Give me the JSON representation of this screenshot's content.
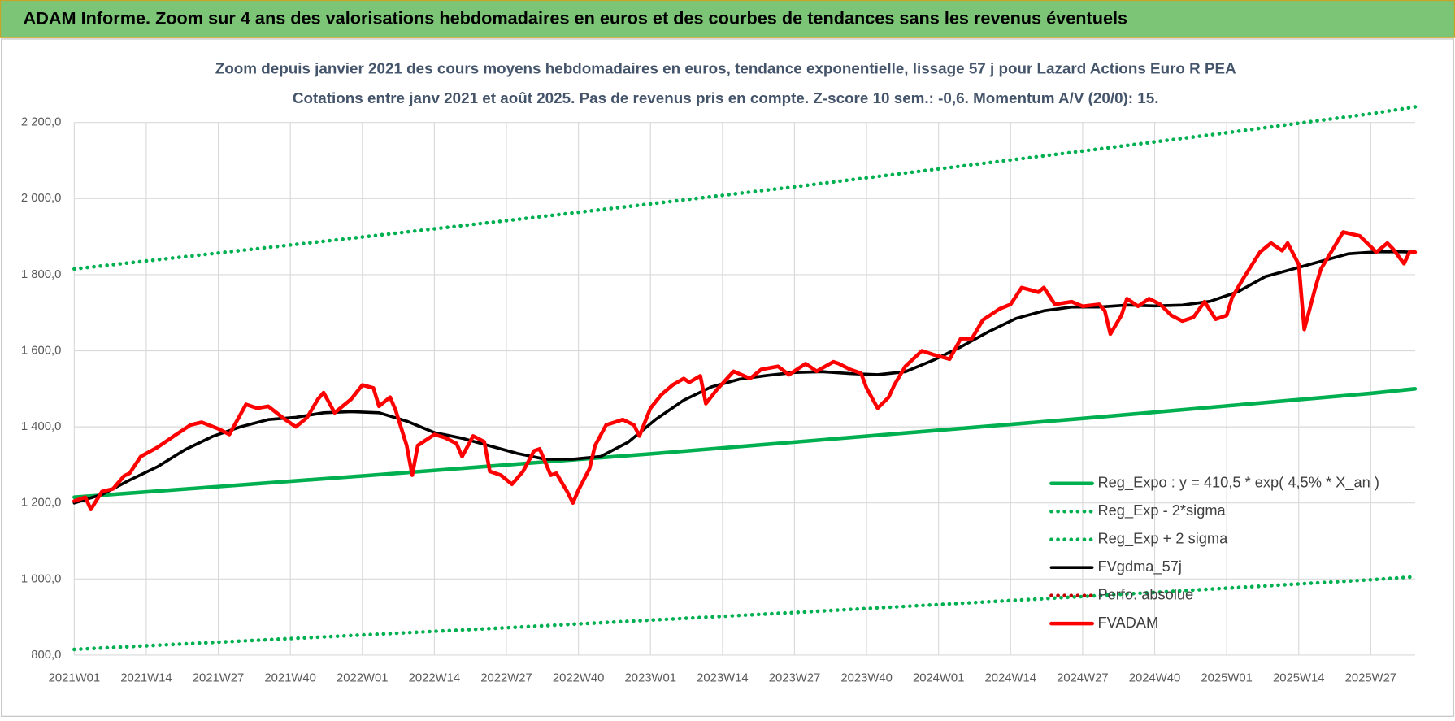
{
  "header": "ADAM Informe. Zoom sur 4 ans des valorisations hebdomadaires en euros et des courbes de tendances sans les revenus éventuels",
  "chart_data": {
    "type": "line",
    "title": "Zoom depuis janvier 2021 des cours moyens hebdomadaires en euros, tendance exponentielle, lissage 57 j pour Lazard Actions Euro R PEA",
    "subtitle": "Cotations entre janv 2021 et août 2025. Pas de revenus pris en compte. Z-score 10 sem.: -0,6. Momentum A/V (20/0): 15.",
    "xlim": [
      0,
      242
    ],
    "xticks": [
      {
        "value": 0,
        "label": "2021W01"
      },
      {
        "value": 13,
        "label": "2021W14"
      },
      {
        "value": 26,
        "label": "2021W27"
      },
      {
        "value": 39,
        "label": "2021W40"
      },
      {
        "value": 52,
        "label": "2022W01"
      },
      {
        "value": 65,
        "label": "2022W14"
      },
      {
        "value": 78,
        "label": "2022W27"
      },
      {
        "value": 91,
        "label": "2022W40"
      },
      {
        "value": 104,
        "label": "2023W01"
      },
      {
        "value": 117,
        "label": "2023W14"
      },
      {
        "value": 130,
        "label": "2023W27"
      },
      {
        "value": 143,
        "label": "2023W40"
      },
      {
        "value": 156,
        "label": "2024W01"
      },
      {
        "value": 169,
        "label": "2024W14"
      },
      {
        "value": 182,
        "label": "2024W27"
      },
      {
        "value": 195,
        "label": "2024W40"
      },
      {
        "value": 208,
        "label": "2025W01"
      },
      {
        "value": 221,
        "label": "2025W14"
      },
      {
        "value": 234,
        "label": "2025W27"
      }
    ],
    "ylim": [
      800,
      2300
    ],
    "yticks": [
      {
        "value": 800,
        "label": "800,0"
      },
      {
        "value": 1000,
        "label": "1 000,0"
      },
      {
        "value": 1200,
        "label": "1 200,0"
      },
      {
        "value": 1400,
        "label": "1 400,0"
      },
      {
        "value": 1600,
        "label": "1 600,0"
      },
      {
        "value": 1800,
        "label": "1 800,0"
      },
      {
        "value": 2000,
        "label": "2 000,0"
      },
      {
        "value": 2200,
        "label": "2 200,0"
      }
    ],
    "grid": true,
    "legend": "lower-right",
    "series": [
      {
        "name": "Reg_Expo : y = 410,5 * exp( 4,5% *  X_an )",
        "color": "#00b050",
        "style": "solid",
        "x": [
          0,
          26,
          52,
          78,
          104,
          130,
          156,
          182,
          208,
          234,
          242
        ],
        "values": [
          1215,
          1243,
          1271,
          1300,
          1329,
          1360,
          1391,
          1422,
          1455,
          1488,
          1500
        ]
      },
      {
        "name": "Reg_Exp - 2*sigma",
        "color": "#00b050",
        "style": "dotted",
        "x": [
          0,
          26,
          52,
          78,
          104,
          130,
          156,
          182,
          208,
          234,
          242
        ],
        "values": [
          815,
          834,
          853,
          872,
          892,
          912,
          933,
          954,
          976,
          998,
          1006
        ]
      },
      {
        "name": "Reg_Exp + 2 sigma",
        "color": "#00b050",
        "style": "dotted",
        "x": [
          0,
          26,
          52,
          78,
          104,
          130,
          156,
          182,
          208,
          234,
          242
        ],
        "values": [
          1815,
          1857,
          1899,
          1942,
          1986,
          2031,
          2078,
          2125,
          2173,
          2223,
          2241
        ]
      },
      {
        "name": "FVgdma_57j",
        "color": "#000000",
        "style": "solid",
        "x": [
          0,
          5,
          10,
          15,
          20,
          25,
          30,
          35,
          40,
          45,
          50,
          55,
          60,
          65,
          70,
          75,
          80,
          85,
          90,
          95,
          100,
          105,
          110,
          115,
          120,
          125,
          130,
          135,
          140,
          145,
          150,
          155,
          160,
          165,
          170,
          175,
          180,
          185,
          190,
          195,
          200,
          205,
          210,
          215,
          220,
          225,
          230,
          235,
          240,
          242
        ],
        "values": [
          1200,
          1222,
          1260,
          1295,
          1340,
          1375,
          1400,
          1419,
          1425,
          1437,
          1440,
          1437,
          1415,
          1385,
          1370,
          1350,
          1330,
          1315,
          1315,
          1322,
          1360,
          1420,
          1470,
          1505,
          1525,
          1535,
          1543,
          1545,
          1540,
          1537,
          1545,
          1575,
          1610,
          1650,
          1685,
          1705,
          1715,
          1715,
          1720,
          1718,
          1720,
          1730,
          1755,
          1795,
          1815,
          1835,
          1855,
          1860,
          1860,
          1858
        ]
      },
      {
        "name": "Perfo. absolue",
        "color": "#c00000",
        "style": "dotted",
        "x": [],
        "values": []
      },
      {
        "name": "FVADAM",
        "color": "#ff0000",
        "style": "solid",
        "x": [
          0,
          2,
          3,
          5,
          7,
          9,
          10,
          12,
          15,
          18,
          21,
          23,
          26,
          28,
          31,
          33,
          35,
          38,
          40,
          42,
          44,
          45,
          47,
          50,
          52,
          54,
          55,
          57,
          58,
          60,
          61,
          62,
          65,
          67,
          69,
          70,
          72,
          74,
          75,
          77,
          79,
          81,
          83,
          84,
          86,
          87,
          89,
          90,
          91,
          93,
          94,
          96,
          99,
          101,
          102,
          104,
          106,
          108,
          110,
          111,
          113,
          114,
          116,
          119,
          122,
          124,
          127,
          129,
          132,
          134,
          137,
          138,
          140,
          142,
          143,
          145,
          147,
          148,
          150,
          153,
          155,
          158,
          160,
          162,
          164,
          167,
          169,
          171,
          174,
          175,
          177,
          180,
          182,
          185,
          186,
          187,
          189,
          190,
          192,
          194,
          196,
          198,
          200,
          202,
          204,
          206,
          208,
          209,
          211,
          214,
          216,
          218,
          219,
          221,
          222,
          224,
          225,
          227,
          229,
          232,
          233,
          235,
          237,
          238,
          240,
          241,
          242
        ],
        "values": [
          1205,
          1215,
          1183,
          1230,
          1237,
          1271,
          1278,
          1322,
          1346,
          1376,
          1405,
          1412,
          1395,
          1380,
          1459,
          1449,
          1454,
          1420,
          1400,
          1424,
          1473,
          1490,
          1437,
          1473,
          1510,
          1502,
          1454,
          1478,
          1444,
          1351,
          1273,
          1351,
          1380,
          1371,
          1356,
          1322,
          1376,
          1361,
          1283,
          1273,
          1249,
          1283,
          1337,
          1342,
          1273,
          1278,
          1229,
          1200,
          1234,
          1290,
          1351,
          1405,
          1419,
          1405,
          1376,
          1449,
          1485,
          1510,
          1527,
          1517,
          1534,
          1461,
          1498,
          1546,
          1527,
          1551,
          1559,
          1537,
          1566,
          1546,
          1571,
          1566,
          1551,
          1541,
          1502,
          1449,
          1478,
          1510,
          1559,
          1600,
          1590,
          1578,
          1632,
          1632,
          1681,
          1710,
          1722,
          1766,
          1754,
          1766,
          1722,
          1729,
          1717,
          1722,
          1705,
          1644,
          1693,
          1737,
          1717,
          1737,
          1722,
          1693,
          1678,
          1688,
          1729,
          1683,
          1693,
          1741,
          1790,
          1859,
          1883,
          1863,
          1883,
          1827,
          1656,
          1766,
          1815,
          1863,
          1912,
          1902,
          1888,
          1859,
          1883,
          1868,
          1829,
          1859,
          1859
        ]
      }
    ]
  }
}
